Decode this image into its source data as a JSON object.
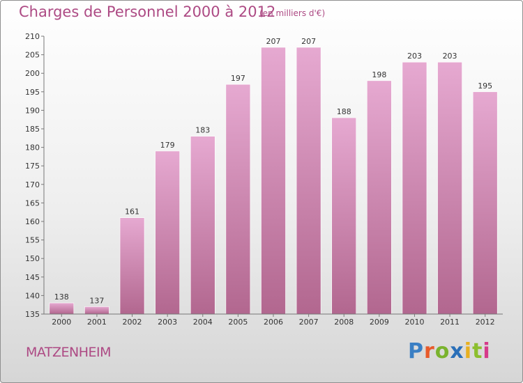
{
  "header": {
    "title": "Charges de Personnel 2000 à 2012",
    "subtitle": "(en milliers d'€)"
  },
  "footer": {
    "commune": "MATZENHEIM",
    "logo": "Proxiti"
  },
  "colors": {
    "title": "#ad4a84",
    "bar_top": "#e6a9d1",
    "bar_bottom": "#b2678f",
    "logo_letters": [
      "#3a7fc4",
      "#e85a2a",
      "#7ab32e",
      "#2a6fb8",
      "#e8b020",
      "#8cbf2e",
      "#d63a8a"
    ]
  },
  "chart_data": {
    "type": "bar",
    "categories": [
      "2000",
      "2001",
      "2002",
      "2003",
      "2004",
      "2005",
      "2006",
      "2007",
      "2008",
      "2009",
      "2010",
      "2011",
      "2012"
    ],
    "values": [
      138,
      137,
      161,
      179,
      183,
      197,
      207,
      207,
      188,
      198,
      203,
      203,
      195
    ],
    "title": "Charges de Personnel 2000 à 2012",
    "ylim": [
      135,
      210
    ],
    "yticks": [
      135,
      140,
      145,
      150,
      155,
      160,
      165,
      170,
      175,
      180,
      185,
      190,
      195,
      200,
      205,
      210
    ],
    "grid": false,
    "legend": "none"
  }
}
